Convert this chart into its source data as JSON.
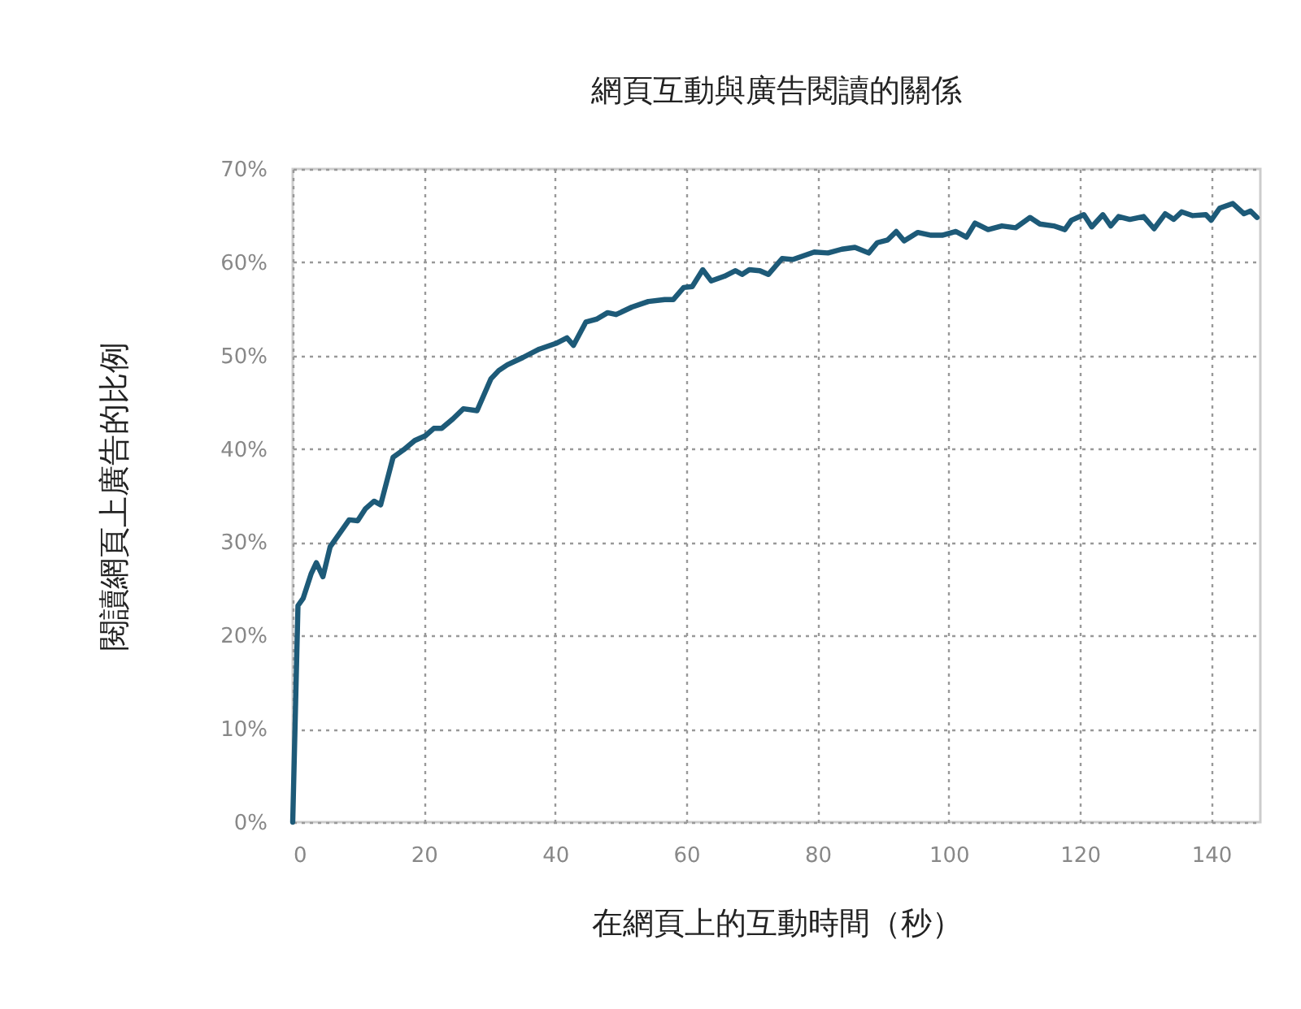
{
  "chart_data": {
    "type": "line",
    "title": "網頁互動與廣告閱讀的關係",
    "xlabel": "在網頁上的互動時間（秒）",
    "ylabel": "閱讀網頁上廣告的比例",
    "xlim": [
      0,
      147.5
    ],
    "xticks": [
      0,
      20,
      40,
      60,
      80,
      100,
      120,
      140
    ],
    "ylim": [
      0,
      70
    ],
    "yticks": [
      {
        "value": 0,
        "label": "0%"
      },
      {
        "value": 10,
        "label": "10%"
      },
      {
        "value": 20,
        "label": "20%"
      },
      {
        "value": 30,
        "label": "30%"
      },
      {
        "value": 40,
        "label": "40%"
      },
      {
        "value": 50,
        "label": "50%"
      },
      {
        "value": 60,
        "label": "60%"
      },
      {
        "value": 70,
        "label": "70%"
      }
    ],
    "grid": true,
    "series": [
      {
        "color": "#1d5a78",
        "x": [
          0,
          0.8,
          1.6,
          2.8,
          3.6,
          4.6,
          5.7,
          7.4,
          8.6,
          9.9,
          11.1,
          12.4,
          13.4,
          15.3,
          16.9,
          18.6,
          20.2,
          21.5,
          22.7,
          24.4,
          26,
          28.1,
          30.2,
          31.4,
          32.7,
          35.1,
          37.6,
          40.1,
          41.8,
          42.8,
          44.7,
          46.3,
          48,
          49.3,
          51.7,
          54.2,
          56.7,
          58,
          59.6,
          60.9,
          62.5,
          63.8,
          65.8,
          67.5,
          68.5,
          69.6,
          71.2,
          72.5,
          74.6,
          76.2,
          77.9,
          79.5,
          81.6,
          83.7,
          85.7,
          87.8,
          89.1,
          90.7,
          92,
          93.2,
          95.3,
          97.3,
          99,
          101.1,
          102.7,
          104,
          106,
          108.1,
          110.2,
          112.4,
          113.9,
          116,
          117.7,
          118.7,
          120.6,
          121.8,
          123.5,
          124.7,
          125.9,
          127.6,
          129.7,
          131.3,
          133,
          134.3,
          135.5,
          137.2,
          139.2,
          140,
          141.3,
          143.3,
          145,
          146,
          147
        ],
        "values": [
          0,
          23.2,
          24,
          26.6,
          27.8,
          26.3,
          29.5,
          31.2,
          32.4,
          32.3,
          33.6,
          34.4,
          34,
          39.1,
          39.9,
          40.9,
          41.4,
          42.2,
          42.2,
          43.2,
          44.3,
          44.1,
          47.5,
          48.4,
          49,
          49.8,
          50.7,
          51.3,
          51.9,
          51.1,
          53.6,
          53.9,
          54.6,
          54.4,
          55.2,
          55.8,
          56,
          56,
          57.3,
          57.4,
          59.2,
          58,
          58.5,
          59.1,
          58.7,
          59.2,
          59.1,
          58.7,
          60.4,
          60.3,
          60.7,
          61.1,
          61,
          61.4,
          61.6,
          61,
          62.1,
          62.4,
          63.3,
          62.3,
          63.2,
          62.9,
          62.9,
          63.3,
          62.7,
          64.2,
          63.5,
          63.9,
          63.7,
          64.8,
          64.1,
          63.9,
          63.5,
          64.5,
          65.1,
          63.8,
          65.1,
          63.9,
          64.9,
          64.6,
          64.9,
          63.6,
          65.2,
          64.6,
          65.4,
          65,
          65.1,
          64.5,
          65.8,
          66.3,
          65.2,
          65.5,
          64.8
        ]
      }
    ]
  }
}
